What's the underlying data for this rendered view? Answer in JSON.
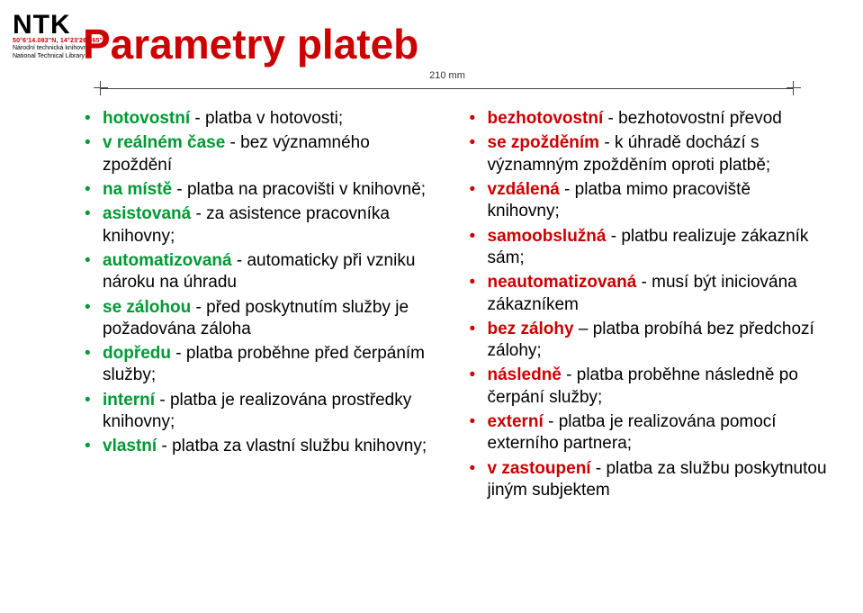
{
  "logo": {
    "main": "NTK",
    "red_line": "50°6'14.083\"N, 14°23'26.365\"E",
    "sub1": "Národní technická knihovna",
    "sub2": "National Technical Library"
  },
  "title": {
    "text": "Parametry plateb",
    "color": "#cc0000"
  },
  "ruler": {
    "label": "210 mm"
  },
  "colors": {
    "left_accent": "#009933",
    "right_accent": "#cc0000",
    "text": "#000000",
    "background": "#ffffff"
  },
  "left_items": [
    {
      "term": "hotovostní",
      "desc": " - platba v hotovosti;"
    },
    {
      "term": "v reálném čase",
      "desc": " - bez významného zpoždění"
    },
    {
      "term": "na místě",
      "desc": " - platba na pracovišti v knihovně;"
    },
    {
      "term": "asistovaná",
      "desc": " - za asistence pracovníka knihovny;"
    },
    {
      "term": "automatizovaná",
      "desc": " - automaticky při vzniku nároku na úhradu"
    },
    {
      "term": "se zálohou",
      "desc": " - před poskytnutím služby je požadována záloha"
    },
    {
      "term": "dopředu",
      "desc": " - platba proběhne před čerpáním služby;"
    },
    {
      "term": "interní",
      "desc": " - platba je realizována prostředky knihovny;"
    },
    {
      "term": "vlastní",
      "desc": " - platba za vlastní službu knihovny;"
    }
  ],
  "right_items": [
    {
      "term": "bezhotovostní",
      "desc": " - bezhotovostní převod"
    },
    {
      "term": "se zpožděním",
      "desc": " - k úhradě dochází s významným zpožděním oproti platbě;"
    },
    {
      "term": "vzdálená",
      "desc": " - platba mimo pracoviště knihovny;"
    },
    {
      "term": "samoobslužná",
      "desc": " - platbu realizuje zákazník sám;"
    },
    {
      "term": "neautomatizovaná",
      "desc": " - musí být iniciována zákazníkem"
    },
    {
      "term": "bez zálohy",
      "desc": " – platba probíhá bez předchozí zálohy;"
    },
    {
      "term": "následně",
      "desc": " - platba proběhne následně po čerpání služby;"
    },
    {
      "term": "externí",
      "desc": " - platba je realizována pomocí externího partnera;"
    },
    {
      "term": "v zastoupení",
      "desc": " - platba za službu poskytnutou  jiným subjektem"
    }
  ]
}
